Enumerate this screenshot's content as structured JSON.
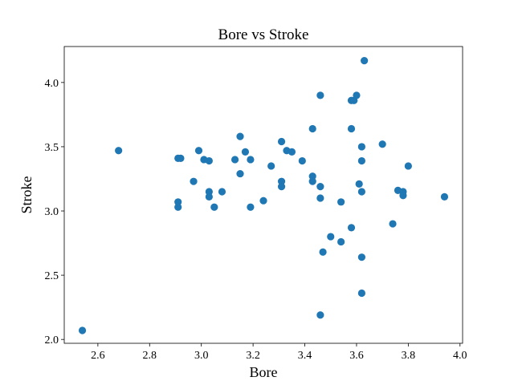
{
  "colors": {
    "point": "#1f77b4",
    "axis": "#000000",
    "background": "#ffffff"
  },
  "chart_data": {
    "type": "scatter",
    "title": "Bore vs Stroke",
    "xlabel": "Bore",
    "ylabel": "Stroke",
    "xlim": [
      2.47,
      4.01
    ],
    "ylim": [
      1.97,
      4.28
    ],
    "xticks": [
      2.6,
      2.8,
      3.0,
      3.2,
      3.4,
      3.6,
      3.8,
      4.0
    ],
    "xtick_labels": [
      "2.6",
      "2.8",
      "3.0",
      "3.2",
      "3.4",
      "3.6",
      "3.8",
      "4.0"
    ],
    "yticks": [
      2.0,
      2.5,
      3.0,
      3.5,
      4.0
    ],
    "ytick_labels": [
      "2.0",
      "2.5",
      "3.0",
      "3.5",
      "4.0"
    ],
    "grid": false,
    "series": [
      {
        "name": "Bore vs Stroke",
        "points": [
          [
            2.54,
            2.07
          ],
          [
            2.68,
            3.47
          ],
          [
            2.91,
            3.41
          ],
          [
            2.92,
            3.41
          ],
          [
            2.91,
            3.07
          ],
          [
            2.91,
            3.03
          ],
          [
            2.97,
            3.23
          ],
          [
            2.99,
            3.47
          ],
          [
            3.01,
            3.4
          ],
          [
            3.03,
            3.39
          ],
          [
            3.03,
            3.15
          ],
          [
            3.03,
            3.11
          ],
          [
            3.05,
            3.03
          ],
          [
            3.08,
            3.15
          ],
          [
            3.13,
            3.4
          ],
          [
            3.15,
            3.58
          ],
          [
            3.15,
            3.29
          ],
          [
            3.17,
            3.46
          ],
          [
            3.19,
            3.4
          ],
          [
            3.19,
            3.03
          ],
          [
            3.24,
            3.08
          ],
          [
            3.27,
            3.35
          ],
          [
            3.31,
            3.54
          ],
          [
            3.31,
            3.23
          ],
          [
            3.31,
            3.19
          ],
          [
            3.33,
            3.47
          ],
          [
            3.35,
            3.46
          ],
          [
            3.39,
            3.39
          ],
          [
            3.43,
            3.64
          ],
          [
            3.43,
            3.27
          ],
          [
            3.43,
            3.23
          ],
          [
            3.46,
            3.9
          ],
          [
            3.46,
            3.19
          ],
          [
            3.46,
            3.1
          ],
          [
            3.46,
            2.19
          ],
          [
            3.47,
            2.68
          ],
          [
            3.5,
            2.8
          ],
          [
            3.54,
            3.07
          ],
          [
            3.54,
            2.76
          ],
          [
            3.58,
            3.86
          ],
          [
            3.59,
            3.86
          ],
          [
            3.6,
            3.9
          ],
          [
            3.58,
            3.64
          ],
          [
            3.58,
            2.87
          ],
          [
            3.61,
            3.21
          ],
          [
            3.62,
            3.5
          ],
          [
            3.62,
            3.39
          ],
          [
            3.62,
            3.15
          ],
          [
            3.62,
            2.64
          ],
          [
            3.62,
            2.36
          ],
          [
            3.63,
            4.17
          ],
          [
            3.7,
            3.52
          ],
          [
            3.74,
            2.9
          ],
          [
            3.76,
            3.16
          ],
          [
            3.78,
            3.15
          ],
          [
            3.78,
            3.12
          ],
          [
            3.8,
            3.35
          ],
          [
            3.94,
            3.11
          ]
        ]
      }
    ]
  }
}
